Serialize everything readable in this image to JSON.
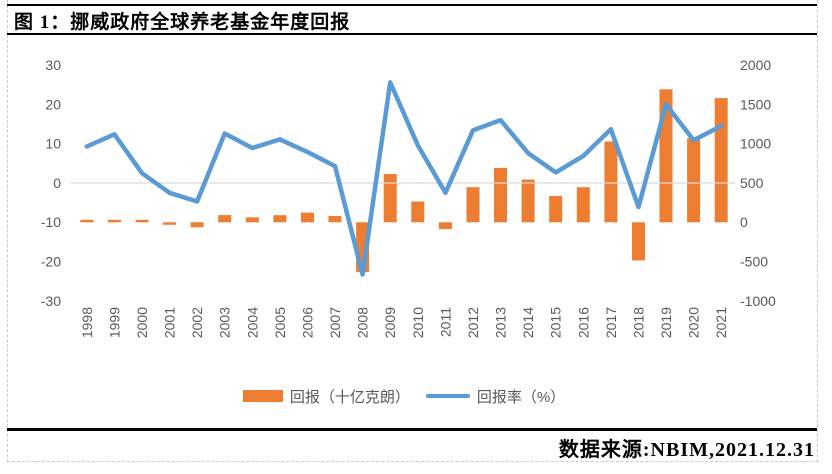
{
  "frame": {
    "title": "图 1：挪威政府全球养老基金年度回报",
    "source": "数据来源:NBIM,2021.12.31"
  },
  "chart_data": {
    "type": "bar",
    "subtype": "combo-bar-line-dual-axis",
    "categories": [
      "1998",
      "1999",
      "2000",
      "2001",
      "2002",
      "2003",
      "2004",
      "2005",
      "2006",
      "2007",
      "2008",
      "2009",
      "2010",
      "2011",
      "2012",
      "2013",
      "2014",
      "2015",
      "2016",
      "2017",
      "2018",
      "2019",
      "2020",
      "2021"
    ],
    "series": [
      {
        "name": "回报（十亿克朗）",
        "type": "bar",
        "axis": "right",
        "color": "#ED7D31",
        "values": [
          14,
          25,
          6,
          -15,
          -63,
          91,
          63,
          90,
          124,
          80,
          -633,
          613,
          264,
          -86,
          447,
          692,
          544,
          334,
          447,
          1028,
          -485,
          1692,
          1070,
          1580
        ]
      },
      {
        "name": "回报率（%）",
        "type": "line",
        "axis": "left",
        "color": "#5B9BD5",
        "values": [
          9.3,
          12.4,
          2.5,
          -2.5,
          -4.7,
          12.6,
          8.9,
          11.1,
          7.9,
          4.3,
          -23.3,
          25.6,
          9.6,
          -2.5,
          13.4,
          16.0,
          7.6,
          2.7,
          6.9,
          13.7,
          -6.1,
          20.0,
          10.9,
          14.5
        ]
      }
    ],
    "left_axis": {
      "ticks": [
        30,
        20,
        10,
        0,
        -10,
        -20,
        -30
      ],
      "range": [
        -30,
        30
      ]
    },
    "right_axis": {
      "ticks": [
        2000,
        1500,
        1000,
        500,
        0,
        -500,
        -1000
      ],
      "range": [
        -1000,
        2000
      ]
    },
    "gridline_at_left_value": 0,
    "grid": "single-horizontal-gridline",
    "legend_position": "bottom",
    "tick_color": "#595959",
    "gridline_color": "#D9D9D9"
  }
}
